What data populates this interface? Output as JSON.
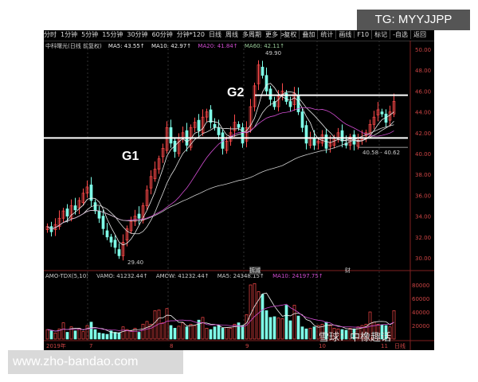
{
  "watermark": "TG: MYYJJPP",
  "site": "www.zho-bandao.com",
  "toolbar": {
    "left": [
      "分时",
      "1分钟",
      "5分钟",
      "15分钟",
      "30分钟",
      "60分钟",
      "分钟*120",
      "日线",
      "周线",
      "多周期",
      "更多 >"
    ],
    "right": [
      "复权",
      "叠加",
      "统计",
      "画线",
      "F10",
      "标记",
      "-自选",
      "返回"
    ]
  },
  "info": {
    "name": "中科曙光(日线 前复权)",
    "ma5": "MA5: 43.55↑",
    "ma10": "MA10: 42.97↑",
    "ma20": "MA20: 41.84↑",
    "ma60": "MA60: 42.11↑"
  },
  "vol_info": {
    "name": "AMO-TDX(5,10)",
    "vamo": "VAMO: 41232.44↑",
    "amow": "AMOW: 41232.44↑",
    "ma5": "MA5: 24348.15↑",
    "ma10": "MA10: 24197.75↑"
  },
  "annotations": {
    "g1": "G1",
    "g2": "G2",
    "high": "49.90",
    "low": "29.40",
    "range": "40.58 - 40.62",
    "mark1": "拆减",
    "mark2": "财",
    "xueqiu": "雪球：中橡趣话"
  },
  "colors": {
    "up": "#ff4a4a",
    "down": "#7fffe8",
    "bg": "#000000",
    "ma20": "#d04cd0"
  },
  "chart_data": {
    "type": "candlestick",
    "price_axis": {
      "ticks": [
        "50.00",
        "48.00",
        "46.00",
        "44.00",
        "42.00",
        "40.00",
        "38.00",
        "36.00",
        "34.00",
        "32.00",
        "30.00"
      ],
      "range": [
        29,
        51
      ]
    },
    "volume_axis": {
      "ticks": [
        "80000",
        "60000",
        "40000",
        "20000"
      ],
      "range": [
        0,
        90000
      ]
    },
    "x_labels": [
      "2019年",
      "7",
      "8",
      "9",
      "10",
      "11",
      "日线"
    ],
    "lines": {
      "g1": 41.5,
      "g2": 45.6
    },
    "close": [
      33.0,
      32.5,
      33.2,
      33.8,
      34.5,
      34.0,
      35.0,
      34.6,
      35.5,
      36.2,
      36.8,
      35.5,
      34.5,
      33.8,
      32.8,
      32.0,
      31.5,
      31.0,
      30.2,
      31.5,
      32.8,
      33.5,
      34.0,
      33.8,
      35.0,
      36.5,
      37.8,
      38.5,
      39.5,
      40.5,
      42.5,
      41.0,
      40.2,
      41.5,
      42.0,
      40.8,
      42.5,
      43.0,
      42.2,
      43.5,
      44.0,
      43.0,
      42.5,
      41.8,
      40.5,
      41.2,
      42.0,
      43.0,
      42.5,
      41.0,
      42.5,
      44.5,
      46.5,
      48.5,
      47.5,
      46.0,
      45.2,
      44.5,
      45.5,
      46.0,
      45.0,
      44.5,
      45.8,
      44.0,
      42.5,
      41.0,
      41.5,
      40.8,
      41.2,
      41.8,
      40.5,
      41.0,
      41.5,
      42.0,
      41.2,
      40.8,
      41.6,
      40.9,
      41.3,
      41.5,
      42.0,
      42.8,
      43.5,
      44.2,
      43.8,
      43.0,
      44.0,
      45.0
    ],
    "volume": [
      14000,
      12000,
      9000,
      15000,
      24000,
      10000,
      18000,
      12000,
      16000,
      11000,
      20000,
      25000,
      14000,
      9000,
      8000,
      7000,
      12000,
      10000,
      9000,
      18000,
      14000,
      12000,
      16000,
      10000,
      22000,
      26000,
      22000,
      42000,
      43000,
      24000,
      45000,
      20000,
      16000,
      19000,
      24000,
      18000,
      22000,
      20000,
      28000,
      32000,
      16000,
      14000,
      18000,
      20000,
      16000,
      17000,
      16000,
      22000,
      24000,
      20000,
      36000,
      80000,
      82000,
      70000,
      66000,
      42000,
      32000,
      33000,
      31000,
      30000,
      50000,
      27000,
      50000,
      34000,
      18000,
      15000,
      16000,
      18000,
      20000,
      22000,
      25000,
      20000,
      16000,
      15000,
      14000,
      13000,
      16000,
      15000,
      18000,
      20000,
      22000,
      40000,
      25000,
      22000,
      21000,
      20000,
      18000,
      42000
    ]
  }
}
